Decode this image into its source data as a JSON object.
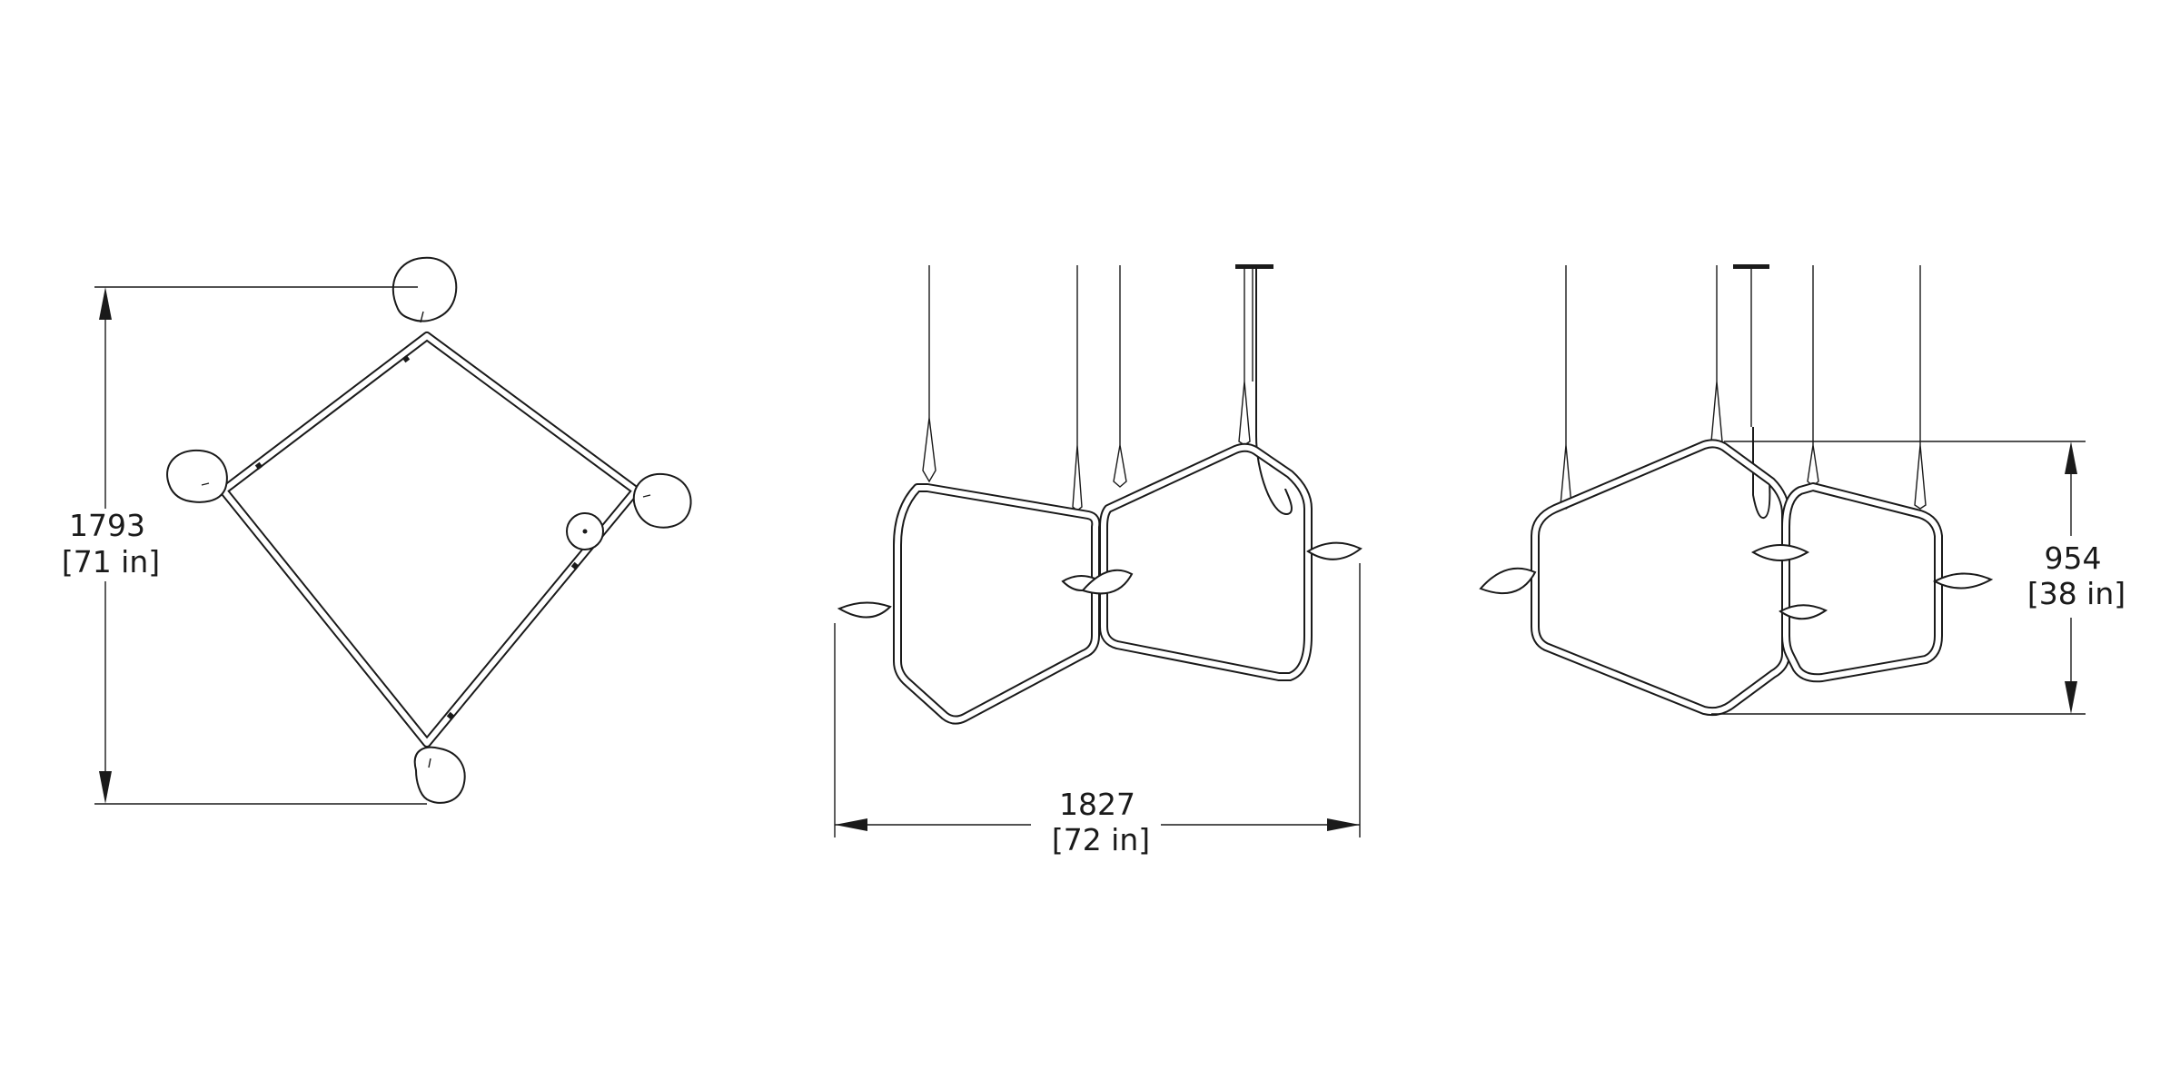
{
  "dimensions": {
    "plan_depth": {
      "mm": "1793",
      "inches": "[71 in]"
    },
    "front_width": {
      "mm": "1827",
      "inches": "[72 in]"
    },
    "side_height": {
      "mm": "954",
      "inches": "[38 in]"
    }
  },
  "views": [
    "plan-view",
    "front-elevation",
    "side-elevation"
  ],
  "colors": {
    "line": "#1a1a1a",
    "background": "#ffffff"
  }
}
